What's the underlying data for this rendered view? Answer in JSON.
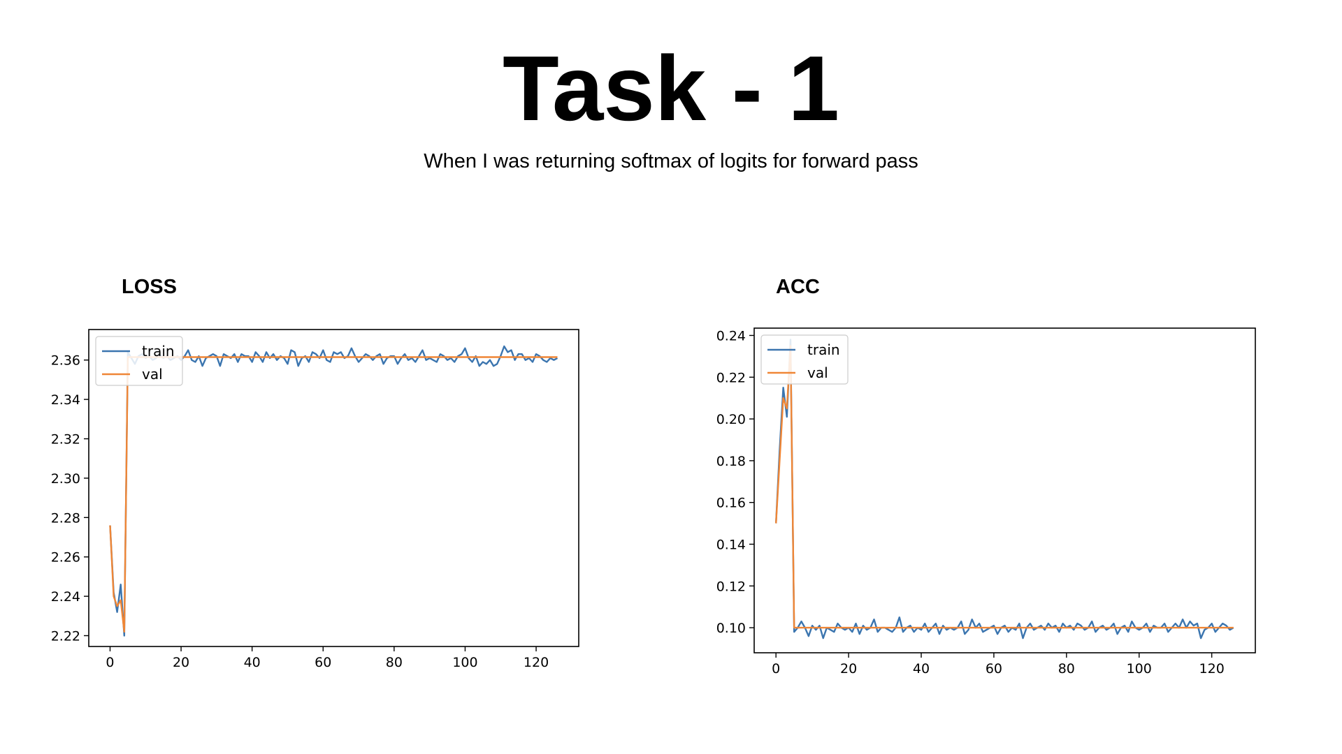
{
  "slide": {
    "title": "Task - 1",
    "subtitle": "When I was returning softmax of logits for forward pass",
    "loss_label": "LOSS",
    "acc_label": "ACC"
  },
  "colors": {
    "train": "#3b75af",
    "val": "#ef8636"
  },
  "chart_data": [
    {
      "type": "line",
      "title": "",
      "xlabel": "",
      "ylabel": "",
      "xlim": [
        -6,
        132
      ],
      "ylim": [
        2.2145,
        2.3755
      ],
      "xticks": [
        0,
        20,
        40,
        60,
        80,
        100,
        120
      ],
      "yticks": [
        2.22,
        2.24,
        2.26,
        2.28,
        2.3,
        2.32,
        2.34,
        2.36
      ],
      "ytick_decimals": 2,
      "grid": false,
      "legend_position": "top-left",
      "series": [
        {
          "name": "train",
          "color": "#3b75af",
          "x": [
            0,
            1,
            2,
            3,
            4,
            5,
            6,
            7,
            8,
            9,
            10,
            11,
            12,
            13,
            14,
            15,
            16,
            17,
            18,
            19,
            20,
            21,
            22,
            23,
            24,
            25,
            26,
            27,
            28,
            29,
            30,
            31,
            32,
            33,
            34,
            35,
            36,
            37,
            38,
            39,
            40,
            41,
            42,
            43,
            44,
            45,
            46,
            47,
            48,
            49,
            50,
            51,
            52,
            53,
            54,
            55,
            56,
            57,
            58,
            59,
            60,
            61,
            62,
            63,
            64,
            65,
            66,
            67,
            68,
            69,
            70,
            71,
            72,
            73,
            74,
            75,
            76,
            77,
            78,
            79,
            80,
            81,
            82,
            83,
            84,
            85,
            86,
            87,
            88,
            89,
            90,
            91,
            92,
            93,
            94,
            95,
            96,
            97,
            98,
            99,
            100,
            101,
            102,
            103,
            104,
            105,
            106,
            107,
            108,
            109,
            110,
            111,
            112,
            113,
            114,
            115,
            116,
            117,
            118,
            119,
            120,
            121,
            122,
            123,
            124,
            125,
            126
          ],
          "y": [
            2.276,
            2.242,
            2.232,
            2.246,
            2.22,
            2.364,
            2.361,
            2.358,
            2.362,
            2.363,
            2.361,
            2.362,
            2.36,
            2.361,
            2.363,
            2.361,
            2.362,
            2.36,
            2.361,
            2.362,
            2.36,
            2.362,
            2.365,
            2.36,
            2.359,
            2.362,
            2.357,
            2.361,
            2.362,
            2.363,
            2.362,
            2.357,
            2.363,
            2.362,
            2.361,
            2.363,
            2.359,
            2.363,
            2.362,
            2.362,
            2.359,
            2.364,
            2.362,
            2.359,
            2.364,
            2.361,
            2.363,
            2.36,
            2.362,
            2.361,
            2.358,
            2.365,
            2.364,
            2.357,
            2.361,
            2.362,
            2.359,
            2.364,
            2.363,
            2.361,
            2.365,
            2.36,
            2.359,
            2.364,
            2.363,
            2.364,
            2.361,
            2.362,
            2.366,
            2.362,
            2.359,
            2.361,
            2.363,
            2.362,
            2.36,
            2.362,
            2.363,
            2.358,
            2.361,
            2.362,
            2.362,
            2.358,
            2.361,
            2.363,
            2.36,
            2.361,
            2.359,
            2.362,
            2.365,
            2.36,
            2.361,
            2.36,
            2.359,
            2.363,
            2.362,
            2.36,
            2.361,
            2.359,
            2.362,
            2.363,
            2.366,
            2.361,
            2.359,
            2.362,
            2.357,
            2.359,
            2.358,
            2.36,
            2.357,
            2.358,
            2.362,
            2.367,
            2.364,
            2.365,
            2.36,
            2.363,
            2.363,
            2.36,
            2.361,
            2.359,
            2.363,
            2.362,
            2.36,
            2.359,
            2.361,
            2.36,
            2.361
          ]
        },
        {
          "name": "val",
          "color": "#ef8636",
          "x": [
            0,
            1,
            2,
            3,
            4,
            5,
            6,
            7,
            8,
            9,
            10,
            11,
            12,
            13,
            14,
            15,
            16,
            17,
            18,
            19,
            20,
            21,
            22,
            23,
            24,
            25,
            26,
            27,
            28,
            29,
            30,
            31,
            32,
            33,
            34,
            35,
            36,
            37,
            38,
            39,
            40,
            41,
            42,
            43,
            44,
            45,
            46,
            47,
            48,
            49,
            50,
            51,
            52,
            53,
            54,
            55,
            56,
            57,
            58,
            59,
            60,
            61,
            62,
            63,
            64,
            65,
            66,
            67,
            68,
            69,
            70,
            71,
            72,
            73,
            74,
            75,
            76,
            77,
            78,
            79,
            80,
            81,
            82,
            83,
            84,
            85,
            86,
            87,
            88,
            89,
            90,
            91,
            92,
            93,
            94,
            95,
            96,
            97,
            98,
            99,
            100,
            101,
            102,
            103,
            104,
            105,
            106,
            107,
            108,
            109,
            110,
            111,
            112,
            113,
            114,
            115,
            116,
            117,
            118,
            119,
            120,
            121,
            122,
            123,
            124,
            125,
            126
          ],
          "y": [
            2.276,
            2.24,
            2.235,
            2.238,
            2.222,
            2.3615,
            2.3615,
            2.3615,
            2.3615,
            2.3615,
            2.3615,
            2.3615,
            2.3615,
            2.3615,
            2.3615,
            2.3615,
            2.3615,
            2.3615,
            2.3615,
            2.3615,
            2.3615,
            2.3615,
            2.3615,
            2.3615,
            2.3615,
            2.3615,
            2.3615,
            2.3615,
            2.3615,
            2.3615,
            2.3615,
            2.3615,
            2.3615,
            2.3615,
            2.3615,
            2.3615,
            2.3615,
            2.3615,
            2.3615,
            2.3615,
            2.3615,
            2.3615,
            2.3615,
            2.3615,
            2.3615,
            2.3615,
            2.3615,
            2.3615,
            2.3615,
            2.3615,
            2.3615,
            2.3615,
            2.3615,
            2.3615,
            2.3615,
            2.3615,
            2.3615,
            2.3615,
            2.3615,
            2.3615,
            2.3615,
            2.3615,
            2.3615,
            2.3615,
            2.3615,
            2.3615,
            2.3615,
            2.3615,
            2.3615,
            2.3615,
            2.3615,
            2.3615,
            2.3615,
            2.3615,
            2.3615,
            2.3615,
            2.3615,
            2.3615,
            2.3615,
            2.3615,
            2.3615,
            2.3615,
            2.3615,
            2.3615,
            2.3615,
            2.3615,
            2.3615,
            2.3615,
            2.3615,
            2.3615,
            2.3615,
            2.3615,
            2.3615,
            2.3615,
            2.3615,
            2.3615,
            2.3615,
            2.3615,
            2.3615,
            2.3615,
            2.3615,
            2.3615,
            2.3615,
            2.3615,
            2.3615,
            2.3615,
            2.3615,
            2.3615,
            2.3615,
            2.3615,
            2.3615,
            2.3615,
            2.3615,
            2.3615,
            2.3615,
            2.3615,
            2.3615,
            2.3615,
            2.3615,
            2.3615,
            2.3615,
            2.3615,
            2.3615,
            2.3615,
            2.3615,
            2.3615,
            2.3615
          ]
        }
      ]
    },
    {
      "type": "line",
      "title": "",
      "xlabel": "",
      "ylabel": "",
      "xlim": [
        -6,
        132
      ],
      "ylim": [
        0.088,
        0.2435
      ],
      "xticks": [
        0,
        20,
        40,
        60,
        80,
        100,
        120
      ],
      "yticks": [
        0.1,
        0.12,
        0.14,
        0.16,
        0.18,
        0.2,
        0.22,
        0.24
      ],
      "ytick_decimals": 2,
      "grid": false,
      "legend_position": "top-left",
      "series": [
        {
          "name": "train",
          "color": "#3b75af",
          "x": [
            0,
            1,
            2,
            3,
            4,
            5,
            6,
            7,
            8,
            9,
            10,
            11,
            12,
            13,
            14,
            15,
            16,
            17,
            18,
            19,
            20,
            21,
            22,
            23,
            24,
            25,
            26,
            27,
            28,
            29,
            30,
            31,
            32,
            33,
            34,
            35,
            36,
            37,
            38,
            39,
            40,
            41,
            42,
            43,
            44,
            45,
            46,
            47,
            48,
            49,
            50,
            51,
            52,
            53,
            54,
            55,
            56,
            57,
            58,
            59,
            60,
            61,
            62,
            63,
            64,
            65,
            66,
            67,
            68,
            69,
            70,
            71,
            72,
            73,
            74,
            75,
            76,
            77,
            78,
            79,
            80,
            81,
            82,
            83,
            84,
            85,
            86,
            87,
            88,
            89,
            90,
            91,
            92,
            93,
            94,
            95,
            96,
            97,
            98,
            99,
            100,
            101,
            102,
            103,
            104,
            105,
            106,
            107,
            108,
            109,
            110,
            111,
            112,
            113,
            114,
            115,
            116,
            117,
            118,
            119,
            120,
            121,
            122,
            123,
            124,
            125,
            126
          ],
          "y": [
            0.15,
            0.185,
            0.215,
            0.201,
            0.238,
            0.098,
            0.1,
            0.103,
            0.1,
            0.096,
            0.101,
            0.099,
            0.101,
            0.095,
            0.1,
            0.099,
            0.098,
            0.102,
            0.1,
            0.099,
            0.1,
            0.098,
            0.102,
            0.097,
            0.101,
            0.099,
            0.1,
            0.104,
            0.098,
            0.1,
            0.1,
            0.099,
            0.098,
            0.1,
            0.105,
            0.098,
            0.1,
            0.101,
            0.098,
            0.1,
            0.099,
            0.102,
            0.098,
            0.1,
            0.102,
            0.097,
            0.101,
            0.099,
            0.1,
            0.099,
            0.1,
            0.103,
            0.097,
            0.099,
            0.104,
            0.1,
            0.102,
            0.098,
            0.099,
            0.1,
            0.101,
            0.097,
            0.1,
            0.101,
            0.098,
            0.1,
            0.099,
            0.102,
            0.095,
            0.1,
            0.102,
            0.099,
            0.1,
            0.101,
            0.099,
            0.102,
            0.1,
            0.101,
            0.098,
            0.102,
            0.1,
            0.101,
            0.099,
            0.102,
            0.101,
            0.099,
            0.1,
            0.103,
            0.098,
            0.1,
            0.101,
            0.099,
            0.1,
            0.102,
            0.097,
            0.1,
            0.101,
            0.098,
            0.103,
            0.1,
            0.099,
            0.1,
            0.102,
            0.098,
            0.101,
            0.1,
            0.1,
            0.102,
            0.098,
            0.1,
            0.102,
            0.1,
            0.104,
            0.1,
            0.103,
            0.101,
            0.102,
            0.095,
            0.099,
            0.1,
            0.102,
            0.098,
            0.1,
            0.102,
            0.101,
            0.099,
            0.1
          ]
        },
        {
          "name": "val",
          "color": "#ef8636",
          "x": [
            0,
            1,
            2,
            3,
            4,
            5,
            6,
            7,
            8,
            9,
            10,
            11,
            12,
            13,
            14,
            15,
            16,
            17,
            18,
            19,
            20,
            21,
            22,
            23,
            24,
            25,
            26,
            27,
            28,
            29,
            30,
            31,
            32,
            33,
            34,
            35,
            36,
            37,
            38,
            39,
            40,
            41,
            42,
            43,
            44,
            45,
            46,
            47,
            48,
            49,
            50,
            51,
            52,
            53,
            54,
            55,
            56,
            57,
            58,
            59,
            60,
            61,
            62,
            63,
            64,
            65,
            66,
            67,
            68,
            69,
            70,
            71,
            72,
            73,
            74,
            75,
            76,
            77,
            78,
            79,
            80,
            81,
            82,
            83,
            84,
            85,
            86,
            87,
            88,
            89,
            90,
            91,
            92,
            93,
            94,
            95,
            96,
            97,
            98,
            99,
            100,
            101,
            102,
            103,
            104,
            105,
            106,
            107,
            108,
            109,
            110,
            111,
            112,
            113,
            114,
            115,
            116,
            117,
            118,
            119,
            120,
            121,
            122,
            123,
            124,
            125,
            126
          ],
          "y": [
            0.15,
            0.18,
            0.21,
            0.205,
            0.235,
            0.1,
            0.1,
            0.1,
            0.1,
            0.1,
            0.1,
            0.1,
            0.1,
            0.1,
            0.1,
            0.1,
            0.1,
            0.1,
            0.1,
            0.1,
            0.1,
            0.1,
            0.1,
            0.1,
            0.1,
            0.1,
            0.1,
            0.1,
            0.1,
            0.1,
            0.1,
            0.1,
            0.1,
            0.1,
            0.1,
            0.1,
            0.1,
            0.1,
            0.1,
            0.1,
            0.1,
            0.1,
            0.1,
            0.1,
            0.1,
            0.1,
            0.1,
            0.1,
            0.1,
            0.1,
            0.1,
            0.1,
            0.1,
            0.1,
            0.1,
            0.1,
            0.1,
            0.1,
            0.1,
            0.1,
            0.1,
            0.1,
            0.1,
            0.1,
            0.1,
            0.1,
            0.1,
            0.1,
            0.1,
            0.1,
            0.1,
            0.1,
            0.1,
            0.1,
            0.1,
            0.1,
            0.1,
            0.1,
            0.1,
            0.1,
            0.1,
            0.1,
            0.1,
            0.1,
            0.1,
            0.1,
            0.1,
            0.1,
            0.1,
            0.1,
            0.1,
            0.1,
            0.1,
            0.1,
            0.1,
            0.1,
            0.1,
            0.1,
            0.1,
            0.1,
            0.1,
            0.1,
            0.1,
            0.1,
            0.1,
            0.1,
            0.1,
            0.1,
            0.1,
            0.1,
            0.1,
            0.1,
            0.1,
            0.1,
            0.1,
            0.1,
            0.1,
            0.1,
            0.1,
            0.1,
            0.1,
            0.1,
            0.1,
            0.1,
            0.1,
            0.1,
            0.1
          ]
        }
      ]
    }
  ]
}
